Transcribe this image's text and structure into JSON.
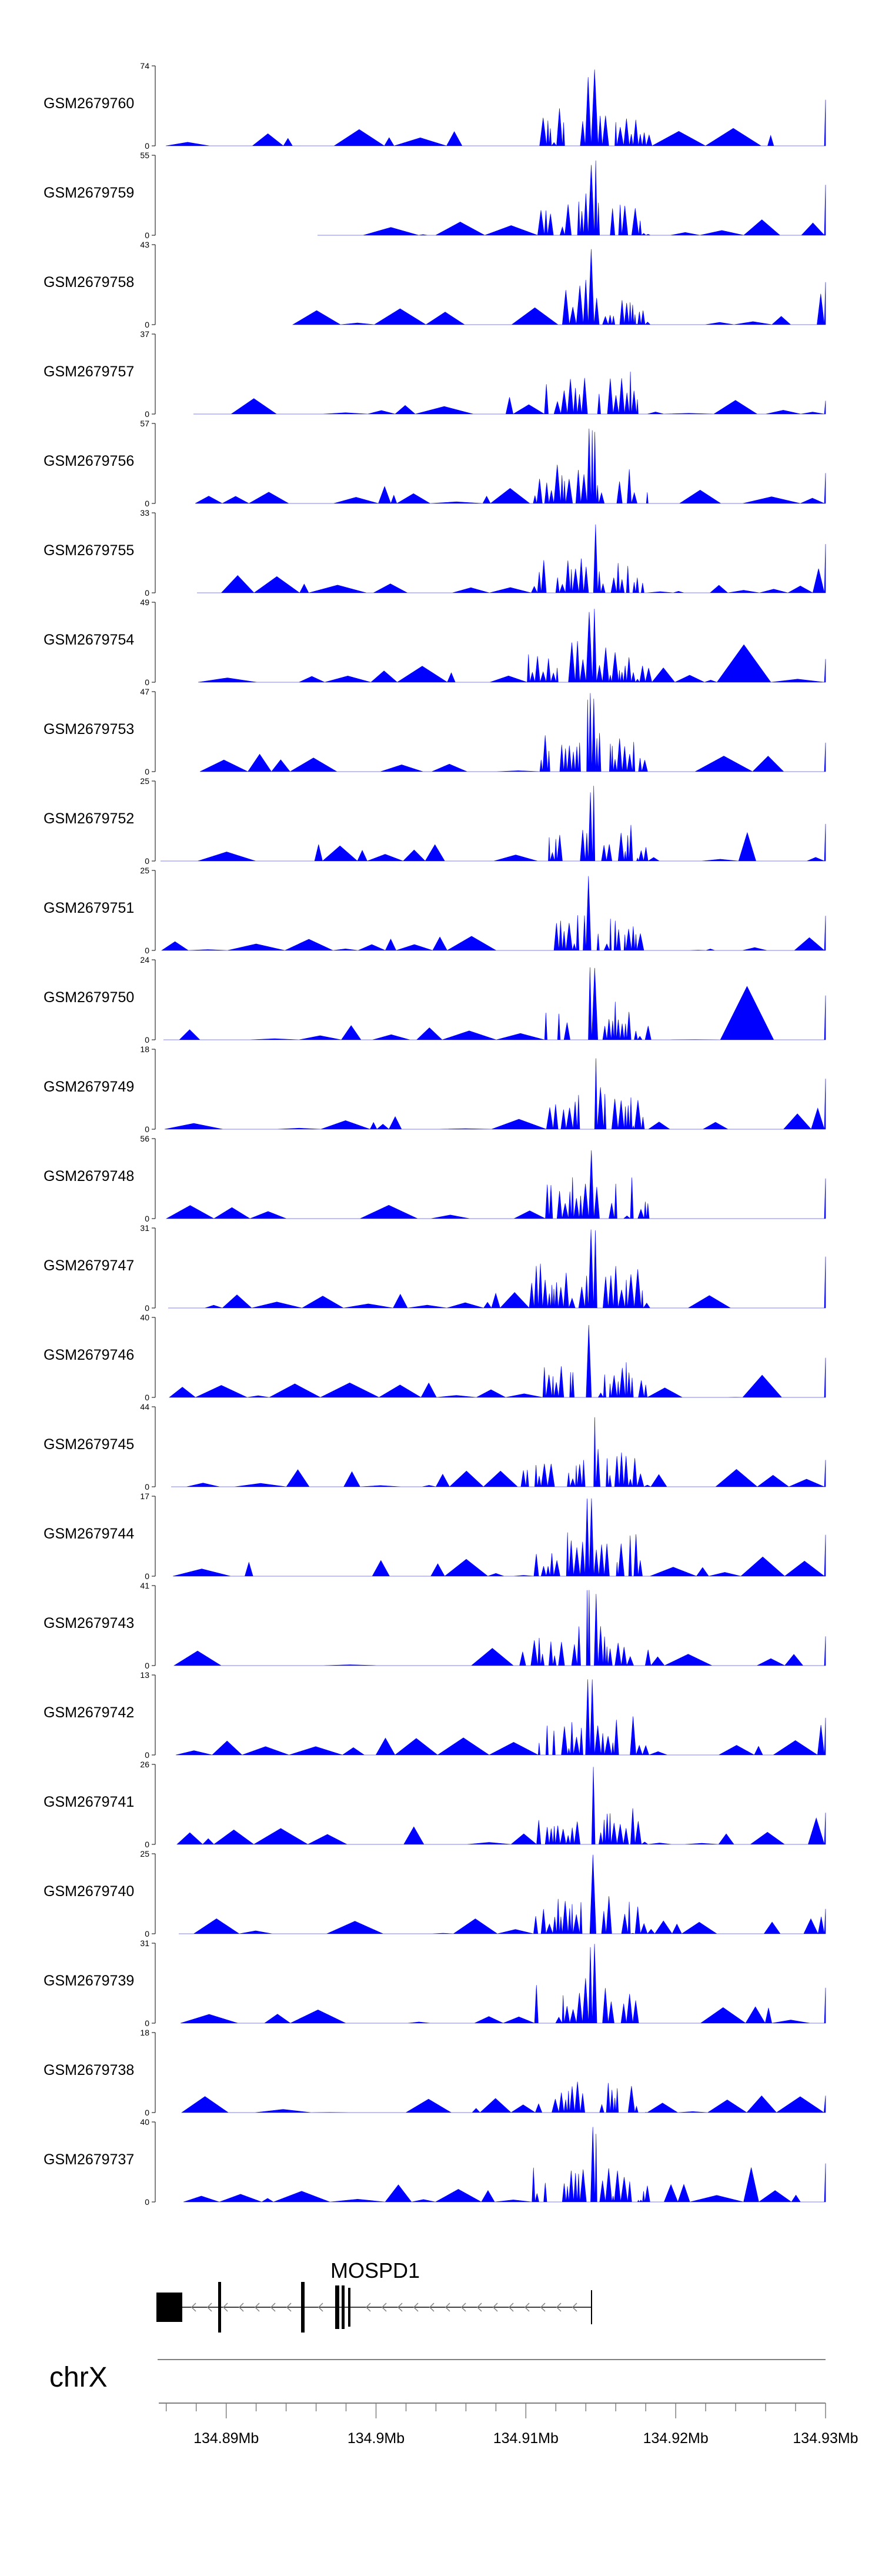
{
  "chart_data": {
    "type": "area",
    "title": "",
    "xlabel": "",
    "ylabel": "",
    "chromosome": "chrX",
    "gene": "MOSPD1",
    "xlim": [
      134.8855,
      134.93
    ],
    "x_ticks": [
      {
        "value": 134.89,
        "label": "134.89Mb"
      },
      {
        "value": 134.9,
        "label": "134.9Mb"
      },
      {
        "value": 134.91,
        "label": "134.91Mb"
      },
      {
        "value": 134.92,
        "label": "134.92Mb"
      },
      {
        "value": 134.93,
        "label": "134.93Mb"
      }
    ],
    "fill_color": "#0000ff",
    "tracks": [
      {
        "name": "GSM2679760",
        "ymax": "74",
        "ymin": "0"
      },
      {
        "name": "GSM2679759",
        "ymax": "55",
        "ymin": "0"
      },
      {
        "name": "GSM2679758",
        "ymax": "43",
        "ymin": "0"
      },
      {
        "name": "GSM2679757",
        "ymax": "37",
        "ymin": "0"
      },
      {
        "name": "GSM2679756",
        "ymax": "57",
        "ymin": "0"
      },
      {
        "name": "GSM2679755",
        "ymax": "33",
        "ymin": "0"
      },
      {
        "name": "GSM2679754",
        "ymax": "49",
        "ymin": "0"
      },
      {
        "name": "GSM2679753",
        "ymax": "47",
        "ymin": "0"
      },
      {
        "name": "GSM2679752",
        "ymax": "25",
        "ymin": "0"
      },
      {
        "name": "GSM2679751",
        "ymax": "25",
        "ymin": "0"
      },
      {
        "name": "GSM2679750",
        "ymax": "24",
        "ymin": "0"
      },
      {
        "name": "GSM2679749",
        "ymax": "18",
        "ymin": "0"
      },
      {
        "name": "GSM2679748",
        "ymax": "56",
        "ymin": "0"
      },
      {
        "name": "GSM2679747",
        "ymax": "31",
        "ymin": "0"
      },
      {
        "name": "GSM2679746",
        "ymax": "40",
        "ymin": "0"
      },
      {
        "name": "GSM2679745",
        "ymax": "44",
        "ymin": "0"
      },
      {
        "name": "GSM2679744",
        "ymax": "17",
        "ymin": "0"
      },
      {
        "name": "GSM2679743",
        "ymax": "41",
        "ymin": "0"
      },
      {
        "name": "GSM2679742",
        "ymax": "13",
        "ymin": "0"
      },
      {
        "name": "GSM2679741",
        "ymax": "26",
        "ymin": "0"
      },
      {
        "name": "GSM2679740",
        "ymax": "25",
        "ymin": "0"
      },
      {
        "name": "GSM2679739",
        "ymax": "31",
        "ymin": "0"
      },
      {
        "name": "GSM2679738",
        "ymax": "18",
        "ymin": "0"
      },
      {
        "name": "GSM2679737",
        "ymax": "40",
        "ymin": "0"
      }
    ]
  }
}
